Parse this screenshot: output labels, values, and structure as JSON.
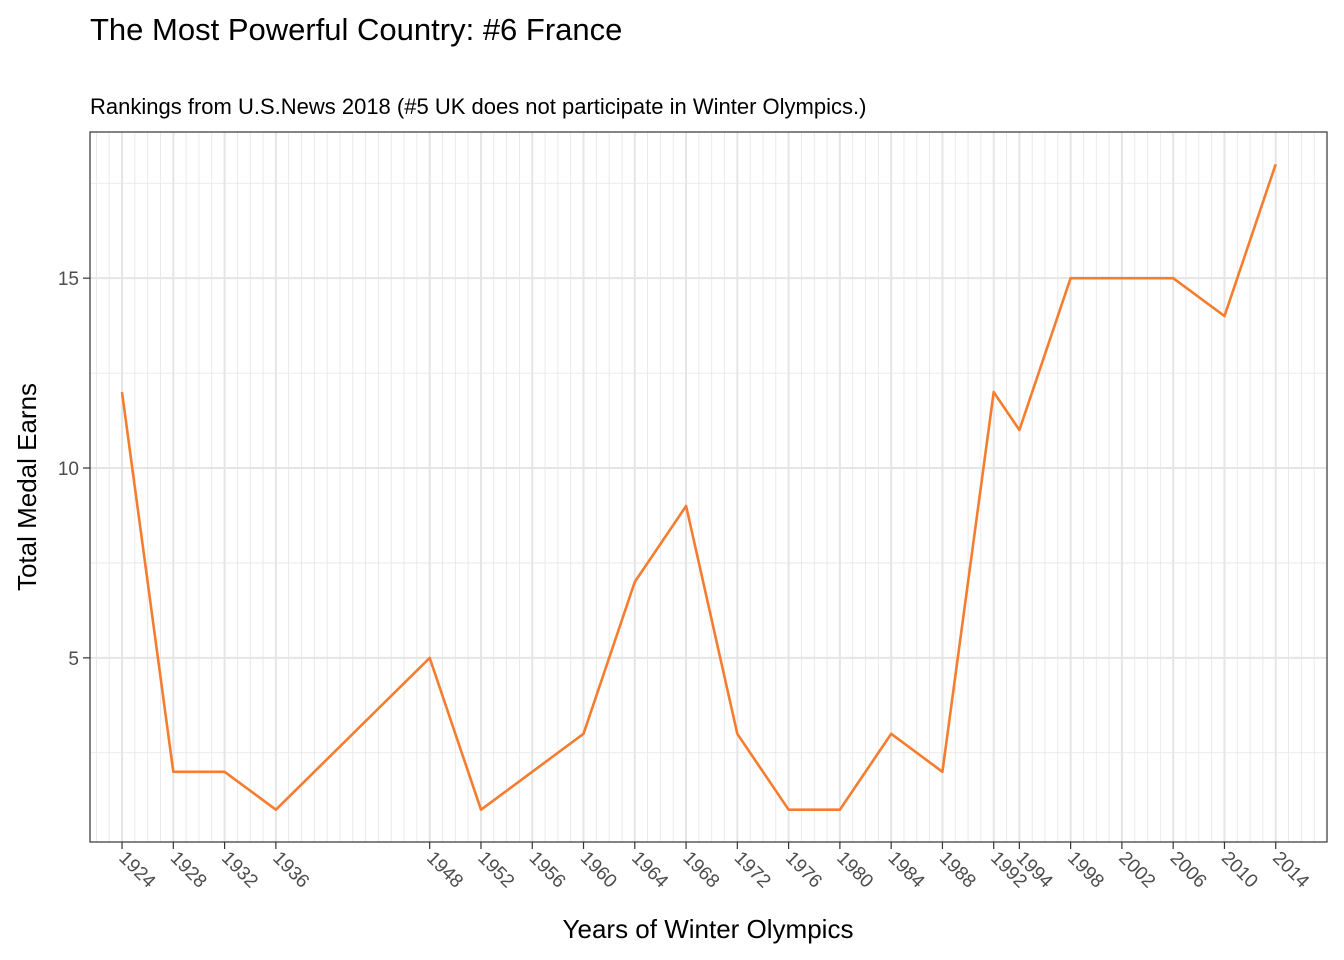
{
  "chart_data": {
    "type": "line",
    "title": "The Most Powerful Country: #6 France",
    "subtitle": "Rankings from U.S.News 2018  (#5 UK does not participate in Winter Olympics.)",
    "xlabel": "Years of Winter Olympics",
    "ylabel": "Total Medal Earns",
    "x": [
      1924,
      1928,
      1932,
      1936,
      1948,
      1952,
      1956,
      1960,
      1964,
      1968,
      1972,
      1976,
      1980,
      1984,
      1988,
      1992,
      1994,
      1998,
      2002,
      2006,
      2010,
      2014
    ],
    "series": [
      {
        "values": [
          12,
          2,
          2,
          1,
          5,
          1,
          2,
          3,
          7,
          9,
          3,
          1,
          1,
          3,
          2,
          12,
          11,
          15,
          15,
          15,
          14,
          18
        ]
      }
    ],
    "x_tick_labels": [
      "1924",
      "1928",
      "1932",
      "1936",
      "1948",
      "1952",
      "1956",
      "1960",
      "1964",
      "1968",
      "1972",
      "1976",
      "1980",
      "1984",
      "1988",
      "1992",
      "1994",
      "1998",
      "2002",
      "2006",
      "2010",
      "2014"
    ],
    "y_ticks": [
      5,
      10,
      15
    ],
    "xlim": [
      1921.5,
      2018
    ],
    "ylim": [
      0.15,
      18.85
    ],
    "grid": true,
    "line_color": "#F47D30",
    "grid_color": "#E5E5E5",
    "panel_border_color": "#333333"
  }
}
